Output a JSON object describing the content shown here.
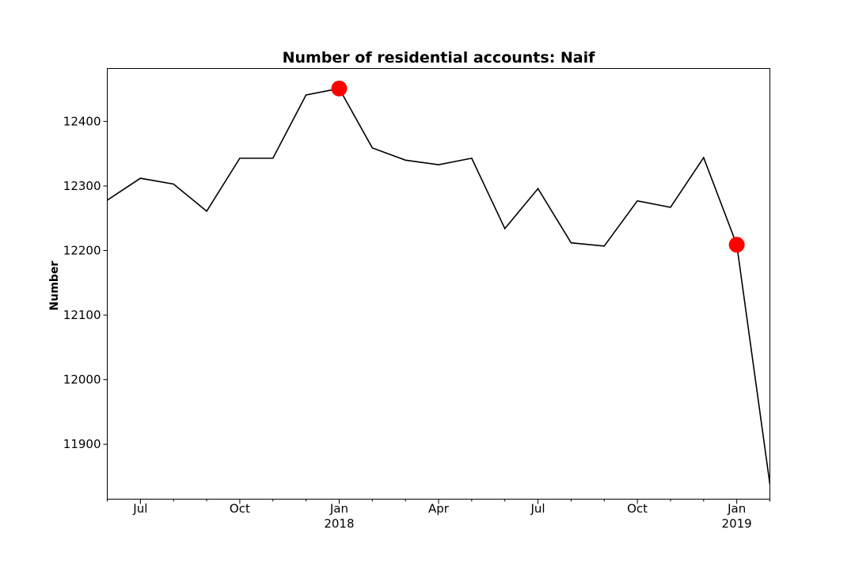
{
  "chart_data": {
    "type": "line",
    "title": "Number of residential accounts: Naif",
    "xlabel": "",
    "ylabel": "Number",
    "x": [
      "2017-06",
      "2017-07",
      "2017-08",
      "2017-09",
      "2017-10",
      "2017-11",
      "2017-12",
      "2018-01",
      "2018-02",
      "2018-03",
      "2018-04",
      "2018-05",
      "2018-06",
      "2018-07",
      "2018-08",
      "2018-09",
      "2018-10",
      "2018-11",
      "2018-12",
      "2019-01",
      "2019-02"
    ],
    "series": [
      {
        "values": [
          12278,
          12312,
          12303,
          12261,
          12343,
          12343,
          12441,
          12451,
          12359,
          12340,
          12333,
          12343,
          12234,
          12296,
          12212,
          12207,
          12277,
          12267,
          12344,
          12209,
          11838
        ]
      }
    ],
    "highlighted_points": [
      {
        "x": "2018-01",
        "y": 12451,
        "color": "#ff0000"
      },
      {
        "x": "2019-01",
        "y": 12209,
        "color": "#ff0000"
      }
    ],
    "ylim": [
      11815,
      12482
    ],
    "xlim": [
      "2017-06",
      "2019-02"
    ],
    "yticks": [
      11900,
      12000,
      12100,
      12200,
      12300,
      12400
    ],
    "ytick_labels": [
      "11900",
      "12000",
      "12100",
      "12200",
      "12300",
      "12400"
    ],
    "xticks_major": [
      {
        "x": "2017-07",
        "label": "Jul",
        "sublabel": ""
      },
      {
        "x": "2017-10",
        "label": "Oct",
        "sublabel": ""
      },
      {
        "x": "2018-01",
        "label": "Jan",
        "sublabel": "2018"
      },
      {
        "x": "2018-04",
        "label": "Apr",
        "sublabel": ""
      },
      {
        "x": "2018-07",
        "label": "Jul",
        "sublabel": ""
      },
      {
        "x": "2018-10",
        "label": "Oct",
        "sublabel": ""
      },
      {
        "x": "2019-01",
        "label": "Jan",
        "sublabel": "2019"
      }
    ],
    "xticks_minor": [
      "2017-06",
      "2017-08",
      "2017-09",
      "2017-11",
      "2017-12",
      "2018-02",
      "2018-03",
      "2018-05",
      "2018-06",
      "2018-08",
      "2018-09",
      "2018-11",
      "2018-12",
      "2019-02"
    ],
    "grid": false,
    "line_color": "#000000"
  }
}
